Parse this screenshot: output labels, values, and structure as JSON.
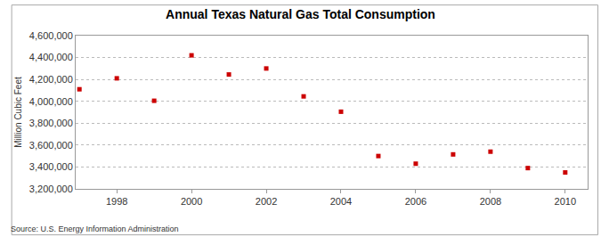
{
  "chart_data": {
    "type": "scatter",
    "title": "Annual Texas Natural Gas Total Consumption",
    "y_label": "Million Cubic Feet",
    "annotations": [
      "Source: U.S. Energy Information Administration"
    ],
    "x": [
      1997,
      1998,
      1999,
      2000,
      2001,
      2002,
      2003,
      2004,
      2005,
      2006,
      2007,
      2008,
      2009,
      2010
    ],
    "values": [
      4110000,
      4210000,
      4005000,
      4420000,
      4245000,
      4300000,
      4045000,
      3905000,
      3500000,
      3430000,
      3515000,
      3540000,
      3390000,
      3350000
    ],
    "color": "#cc0000",
    "marker": "square",
    "xlim": [
      1996.9,
      2010.6
    ],
    "xticks": [
      1998,
      2000,
      2002,
      2004,
      2006,
      2008,
      2010
    ],
    "ylim": [
      3200000,
      4600000
    ],
    "yticks": [
      {
        "value": 3200000,
        "label": "3,200,000"
      },
      {
        "value": 3400000,
        "label": "3,400,000"
      },
      {
        "value": 3600000,
        "label": "3,600,000"
      },
      {
        "value": 3800000,
        "label": "3,800,000"
      },
      {
        "value": 4000000,
        "label": "4,000,000"
      },
      {
        "value": 4200000,
        "label": "4,200,000"
      },
      {
        "value": 4400000,
        "label": "4,400,000"
      },
      {
        "value": 4600000,
        "label": "4,600,000"
      }
    ],
    "grid": true
  }
}
